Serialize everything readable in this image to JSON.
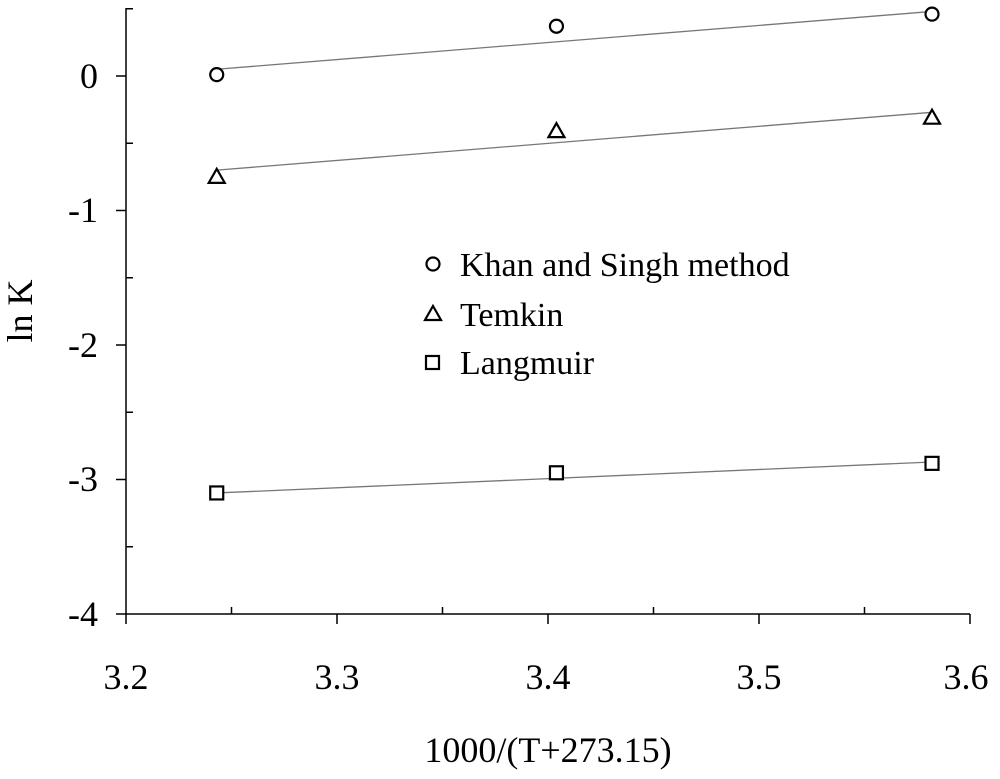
{
  "chart_data": {
    "type": "scatter",
    "xlabel": "1000/(T+273.15)",
    "ylabel": "ln K",
    "xlim": [
      3.2,
      3.6
    ],
    "ylim": [
      -4,
      0.5
    ],
    "x_ticks": [
      "3.2",
      "3.3",
      "3.4",
      "3.5",
      "3.6"
    ],
    "y_ticks": [
      "0",
      "-1",
      "-2",
      "-3",
      "-4"
    ],
    "grid": false,
    "legend_position": "center-right",
    "series": [
      {
        "name": "Khan and Singh method",
        "marker": "circle",
        "x": [
          3.243,
          3.404,
          3.582
        ],
        "y": [
          0.01,
          0.37,
          0.46
        ],
        "trendline": {
          "x": [
            3.243,
            3.582
          ],
          "y": [
            0.05,
            0.48
          ]
        }
      },
      {
        "name": "Temkin",
        "marker": "triangle",
        "x": [
          3.243,
          3.404,
          3.582
        ],
        "y": [
          -0.75,
          -0.41,
          -0.31
        ],
        "trendline": {
          "x": [
            3.243,
            3.582
          ],
          "y": [
            -0.7,
            -0.27
          ]
        }
      },
      {
        "name": "Langmuir",
        "marker": "square",
        "x": [
          3.243,
          3.404,
          3.582
        ],
        "y": [
          -3.1,
          -2.95,
          -2.88
        ],
        "trendline": {
          "x": [
            3.243,
            3.582
          ],
          "y": [
            -3.1,
            -2.87
          ]
        }
      }
    ],
    "colors": {
      "ink": "#000000",
      "trendline": "#777777"
    }
  }
}
